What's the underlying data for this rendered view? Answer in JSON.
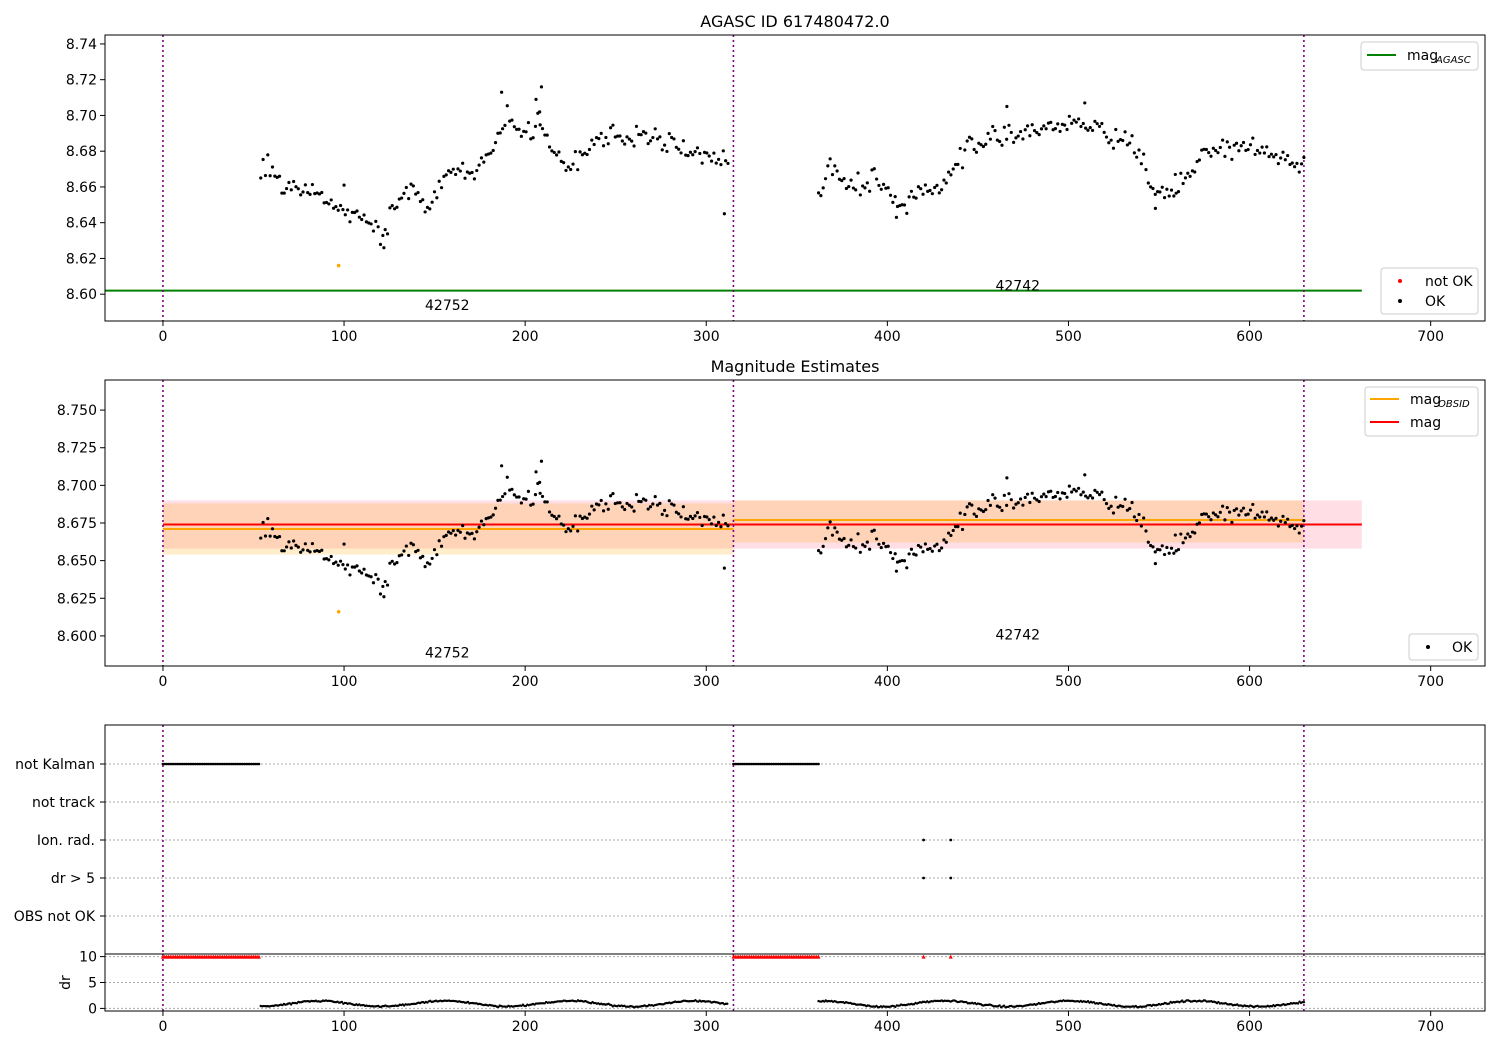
{
  "chart_data": [
    {
      "type": "scatter",
      "title": "AGASC ID 617480472.0",
      "xlim": [
        -32,
        730
      ],
      "ylim": [
        8.585,
        8.745
      ],
      "x_ticks": [
        0,
        100,
        200,
        300,
        400,
        500,
        600,
        700
      ],
      "y_ticks": [
        8.6,
        8.62,
        8.64,
        8.66,
        8.68,
        8.7,
        8.72,
        8.74
      ],
      "y_tick_labels": [
        "8.60",
        "8.62",
        "8.64",
        "8.66",
        "8.68",
        "8.70",
        "8.72",
        "8.74"
      ],
      "obs_boundaries": [
        0,
        315,
        630
      ],
      "obs_labels": [
        {
          "text": "42752",
          "x": 157,
          "y": 8.594
        },
        {
          "text": "42742",
          "x": 472,
          "y": 8.605
        }
      ],
      "mag_agasc": 8.602,
      "mag_agasc_range": [
        -32,
        662
      ],
      "not_ok_points": [
        [
          97,
          8.616
        ]
      ],
      "legend_upper": [
        {
          "label": "mag",
          "subscript": "AGASC",
          "color": "#008000"
        }
      ],
      "legend_lower": [
        {
          "label": "not OK",
          "color": "#ff0000"
        },
        {
          "label": "OK",
          "color": "#000000"
        }
      ],
      "series": [
        {
          "name": "OK",
          "segments": [
            {
              "x0": 54,
              "x1": 312,
              "n": 200,
              "knots": [
                [
                  54,
                  8.669
                ],
                [
                  60,
                  8.675
                ],
                [
                  66,
                  8.659
                ],
                [
                  80,
                  8.658
                ],
                [
                  92,
                  8.654
                ],
                [
                  100,
                  8.647
                ],
                [
                  112,
                  8.642
                ],
                [
                  122,
                  8.633
                ],
                [
                  128,
                  8.65
                ],
                [
                  138,
                  8.66
                ],
                [
                  146,
                  8.647
                ],
                [
                  156,
                  8.667
                ],
                [
                  172,
                  8.668
                ],
                [
                  182,
                  8.68
                ],
                [
                  190,
                  8.7
                ],
                [
                  198,
                  8.689
                ],
                [
                  210,
                  8.694
                ],
                [
                  222,
                  8.67
                ],
                [
                  240,
                  8.686
                ],
                [
                  270,
                  8.69
                ],
                [
                  290,
                  8.68
                ],
                [
                  312,
                  8.676
                ]
              ]
            },
            {
              "x0": 362,
              "x1": 630,
              "n": 210,
              "knots": [
                [
                  362,
                  8.654
                ],
                [
                  368,
                  8.672
                ],
                [
                  380,
                  8.66
                ],
                [
                  392,
                  8.664
                ],
                [
                  402,
                  8.656
                ],
                [
                  410,
                  8.648
                ],
                [
                  420,
                  8.66
                ],
                [
                  432,
                  8.662
                ],
                [
                  445,
                  8.685
                ],
                [
                  470,
                  8.69
                ],
                [
                  500,
                  8.695
                ],
                [
                  520,
                  8.69
                ],
                [
                  535,
                  8.685
                ],
                [
                  548,
                  8.655
                ],
                [
                  560,
                  8.661
                ],
                [
                  575,
                  8.678
                ],
                [
                  590,
                  8.683
                ],
                [
                  610,
                  8.68
                ],
                [
                  630,
                  8.673
                ]
              ]
            }
          ]
        }
      ],
      "outliers": [
        [
          310,
          8.645
        ],
        [
          122,
          8.626
        ],
        [
          209,
          8.716
        ],
        [
          187,
          8.713
        ],
        [
          206,
          8.709
        ],
        [
          509,
          8.707
        ],
        [
          466,
          8.705
        ],
        [
          548,
          8.648
        ],
        [
          405,
          8.643
        ],
        [
          100,
          8.661
        ],
        [
          208,
          8.702
        ],
        [
          559,
          8.667
        ]
      ]
    },
    {
      "type": "scatter",
      "title": "Magnitude Estimates",
      "xlim": [
        -32,
        730
      ],
      "ylim": [
        8.58,
        8.77
      ],
      "x_ticks": [
        0,
        100,
        200,
        300,
        400,
        500,
        600,
        700
      ],
      "y_ticks": [
        8.6,
        8.625,
        8.65,
        8.675,
        8.7,
        8.725,
        8.75
      ],
      "y_tick_labels": [
        "8.600",
        "8.625",
        "8.650",
        "8.675",
        "8.700",
        "8.725",
        "8.750"
      ],
      "obs_boundaries": [
        0,
        315,
        630
      ],
      "obs_labels": [
        {
          "text": "42752",
          "x": 157,
          "y": 8.589
        },
        {
          "text": "42742",
          "x": 472,
          "y": 8.601
        }
      ],
      "mag": {
        "value": 8.674,
        "band": [
          8.658,
          8.69
        ],
        "range": [
          0,
          662
        ]
      },
      "mag_obsid": [
        {
          "x": [
            0,
            315
          ],
          "value": 8.671,
          "band": [
            8.654,
            8.688
          ]
        },
        {
          "x": [
            315,
            630
          ],
          "value": 8.677,
          "band": [
            8.662,
            8.69
          ]
        }
      ],
      "not_ok_points": [
        [
          97,
          8.616
        ]
      ],
      "legend_upper": [
        {
          "label": "mag",
          "subscript": "OBSID",
          "color": "#ffa500"
        },
        {
          "label": "mag",
          "subscript": "",
          "color": "#ff0000"
        }
      ],
      "legend_lower": [
        {
          "label": "OK",
          "color": "#000000"
        }
      ]
    },
    {
      "type": "scatter",
      "title": "",
      "xlim": [
        -32,
        730
      ],
      "x_ticks": [
        0,
        100,
        200,
        300,
        400,
        500,
        600,
        700
      ],
      "obs_boundaries": [
        0,
        315,
        630
      ],
      "flag_rows": [
        "not Kalman",
        "not track",
        "Ion. rad.",
        "dr > 5",
        "OBS not OK"
      ],
      "flags": {
        "not Kalman": [
          [
            0,
            53
          ],
          [
            315,
            362
          ]
        ],
        "Ion. rad.": [
          420,
          435
        ],
        "dr > 5": [
          420,
          435
        ]
      }
    },
    {
      "type": "scatter",
      "title": "",
      "ylabel": "dr",
      "xlim": [
        -32,
        730
      ],
      "ylim": [
        -0.5,
        10.5
      ],
      "x_ticks": [
        0,
        100,
        200,
        300,
        400,
        500,
        600,
        700
      ],
      "y_ticks": [
        0,
        5,
        10
      ],
      "obs_boundaries": [
        0,
        315,
        630
      ],
      "capped_value": 10,
      "capped_ranges": [
        [
          0,
          53
        ],
        [
          315,
          362
        ]
      ],
      "capped_points": [
        420,
        435
      ],
      "dr_range": [
        0.2,
        1.7
      ],
      "dr_segments": [
        [
          54,
          312
        ],
        [
          362,
          630
        ]
      ]
    }
  ]
}
